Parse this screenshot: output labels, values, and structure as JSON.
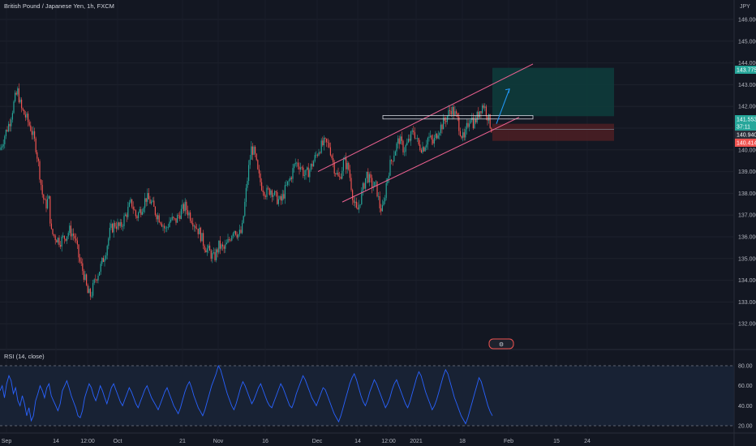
{
  "title": "British Pound / Japanese Yen, 1h, FXCM",
  "currency": "JPY",
  "rsi_title": "RSI (14, close)",
  "badge": "⚙",
  "colors": {
    "background": "#131722",
    "up": "#26a69a",
    "down": "#ef5350",
    "rsi_line": "#2962ff",
    "channel": "#f06292",
    "tp_zone": "#0e3b3b",
    "sl_zone": "#4a1e24"
  },
  "price_tags": [
    {
      "text": "143.775",
      "color": "#26a69a"
    },
    {
      "text": "141.553",
      "color": "#26a69a"
    },
    {
      "text": "37:11",
      "color": "#26a69a"
    },
    {
      "text": "140.940",
      "color": "#2a2e39"
    },
    {
      "text": "140.414",
      "color": "#ef5350"
    }
  ],
  "chart_data": [
    {
      "type": "candlestick",
      "title": "British Pound / Japanese Yen, 1h, FXCM",
      "ylim": [
        131.5,
        146.3
      ],
      "y_ticks": [
        "146.000",
        "145.000",
        "144.000",
        "143.000",
        "142.000",
        "141.000",
        "140.000",
        "139.000",
        "138.000",
        "137.000",
        "136.000",
        "135.000",
        "134.000",
        "133.000",
        "132.000"
      ],
      "x_ticks": [
        "Sep",
        "14",
        "12:00",
        "Oct",
        "21",
        "Nov",
        "16",
        "Dec",
        "14",
        "12:00",
        "2021",
        "18",
        "Feb",
        "15",
        "24"
      ],
      "path": [
        [
          0,
          140.0
        ],
        [
          6,
          140.7
        ],
        [
          12,
          141.3
        ],
        [
          18,
          142.3
        ],
        [
          22,
          142.7
        ],
        [
          26,
          141.9
        ],
        [
          32,
          141.5
        ],
        [
          38,
          141.0
        ],
        [
          44,
          140.2
        ],
        [
          48,
          139.2
        ],
        [
          52,
          138.0
        ],
        [
          56,
          137.4
        ],
        [
          60,
          137.8
        ],
        [
          63,
          136.2
        ],
        [
          68,
          136.0
        ],
        [
          74,
          135.8
        ],
        [
          80,
          136.0
        ],
        [
          86,
          136.3
        ],
        [
          92,
          136.0
        ],
        [
          98,
          134.9
        ],
        [
          104,
          134.2
        ],
        [
          108,
          133.4
        ],
        [
          112,
          133.3
        ],
        [
          118,
          134.1
        ],
        [
          124,
          134.6
        ],
        [
          130,
          135.3
        ],
        [
          136,
          136.3
        ],
        [
          142,
          136.6
        ],
        [
          148,
          136.4
        ],
        [
          155,
          137.0
        ],
        [
          162,
          137.6
        ],
        [
          168,
          136.9
        ],
        [
          174,
          137.3
        ],
        [
          180,
          137.8
        ],
        [
          186,
          137.6
        ],
        [
          192,
          137.1
        ],
        [
          198,
          136.8
        ],
        [
          204,
          136.3
        ],
        [
          210,
          136.8
        ],
        [
          216,
          136.7
        ],
        [
          222,
          137.1
        ],
        [
          228,
          137.4
        ],
        [
          234,
          137.0
        ],
        [
          240,
          136.6
        ],
        [
          246,
          136.2
        ],
        [
          252,
          135.6
        ],
        [
          258,
          135.3
        ],
        [
          264,
          135.0
        ],
        [
          270,
          135.6
        ],
        [
          276,
          135.4
        ],
        [
          282,
          135.8
        ],
        [
          288,
          136.4
        ],
        [
          294,
          136.1
        ],
        [
          298,
          136.2
        ],
        [
          302,
          137.6
        ],
        [
          306,
          139.0
        ],
        [
          310,
          140.1
        ],
        [
          314,
          139.8
        ],
        [
          318,
          138.9
        ],
        [
          322,
          138.4
        ],
        [
          328,
          138.0
        ],
        [
          334,
          138.2
        ],
        [
          340,
          137.8
        ],
        [
          346,
          137.6
        ],
        [
          352,
          138.2
        ],
        [
          358,
          138.7
        ],
        [
          364,
          139.4
        ],
        [
          370,
          139.3
        ],
        [
          376,
          138.8
        ],
        [
          382,
          139.1
        ],
        [
          388,
          139.6
        ],
        [
          394,
          140.1
        ],
        [
          400,
          140.3
        ],
        [
          406,
          140.2
        ],
        [
          412,
          139.2
        ],
        [
          418,
          138.6
        ],
        [
          424,
          139.5
        ],
        [
          430,
          139.1
        ],
        [
          436,
          137.6
        ],
        [
          440,
          137.1
        ],
        [
          446,
          138.0
        ],
        [
          452,
          138.9
        ],
        [
          458,
          138.4
        ],
        [
          464,
          138.3
        ],
        [
          468,
          137.4
        ],
        [
          472,
          137.2
        ],
        [
          476,
          138.4
        ],
        [
          480,
          139.2
        ],
        [
          486,
          139.9
        ],
        [
          492,
          140.5
        ],
        [
          498,
          140.0
        ],
        [
          504,
          140.4
        ],
        [
          510,
          140.9
        ],
        [
          516,
          140.2
        ],
        [
          522,
          140.1
        ],
        [
          528,
          140.6
        ],
        [
          534,
          140.3
        ],
        [
          540,
          140.9
        ],
        [
          546,
          141.2
        ],
        [
          552,
          141.6
        ],
        [
          556,
          141.9
        ],
        [
          560,
          141.7
        ],
        [
          564,
          141.4
        ],
        [
          568,
          140.8
        ],
        [
          572,
          140.4
        ],
        [
          576,
          141.1
        ],
        [
          580,
          141.6
        ],
        [
          584,
          141.2
        ],
        [
          588,
          141.5
        ],
        [
          592,
          141.9
        ],
        [
          596,
          142.1
        ],
        [
          600,
          141.7
        ],
        [
          604,
          141.2
        ],
        [
          607,
          140.9
        ]
      ],
      "drawings": {
        "channel_upper": [
          [
            392,
            139.0
          ],
          [
            657,
            143.95
          ]
        ],
        "channel_lower": [
          [
            422,
            137.6
          ],
          [
            640,
            141.5
          ]
        ],
        "resistance_zone": {
          "x": [
            472,
            657
          ],
          "y": [
            141.42,
            141.58
          ]
        },
        "take_profit_zone": {
          "x": [
            607,
            757
          ],
          "y": [
            141.55,
            143.775
          ]
        },
        "stop_loss_zone": {
          "x": [
            607,
            757
          ],
          "y": [
            140.414,
            141.2
          ]
        },
        "arrow": [
          [
            612,
            141.2
          ],
          [
            628,
            142.8
          ]
        ]
      }
    },
    {
      "type": "line",
      "title": "RSI (14, close)",
      "ylim": [
        15,
        90
      ],
      "y_ticks": [
        "80.00",
        "60.00",
        "40.00",
        "20.00"
      ],
      "bands": [
        20,
        80
      ],
      "values": [
        55,
        60,
        48,
        62,
        70,
        65,
        52,
        58,
        45,
        40,
        50,
        42,
        30,
        38,
        25,
        30,
        45,
        52,
        60,
        55,
        48,
        58,
        62,
        50,
        45,
        40,
        35,
        42,
        55,
        60,
        65,
        58,
        50,
        44,
        38,
        30,
        28,
        35,
        48,
        55,
        62,
        58,
        50,
        45,
        52,
        60,
        55,
        48,
        42,
        50,
        58,
        62,
        56,
        50,
        44,
        40,
        46,
        52,
        58,
        54,
        48,
        42,
        38,
        44,
        50,
        56,
        60,
        54,
        48,
        44,
        40,
        36,
        42,
        48,
        54,
        58,
        52,
        46,
        40,
        36,
        32,
        38,
        46,
        54,
        60,
        64,
        58,
        50,
        44,
        38,
        34,
        30,
        36,
        44,
        52,
        60,
        66,
        72,
        80,
        76,
        68,
        60,
        52,
        46,
        40,
        36,
        42,
        50,
        58,
        64,
        60,
        54,
        48,
        42,
        46,
        52,
        58,
        62,
        56,
        50,
        44,
        40,
        38,
        44,
        50,
        56,
        62,
        58,
        52,
        46,
        40,
        38,
        44,
        52,
        58,
        64,
        70,
        66,
        60,
        54,
        48,
        44,
        40,
        46,
        52,
        58,
        56,
        50,
        44,
        38,
        32,
        28,
        24,
        30,
        38,
        46,
        54,
        62,
        68,
        72,
        66,
        58,
        50,
        44,
        40,
        46,
        54,
        60,
        66,
        62,
        56,
        50,
        44,
        38,
        42,
        48,
        56,
        62,
        66,
        60,
        54,
        48,
        42,
        38,
        44,
        52,
        60,
        68,
        74,
        70,
        62,
        54,
        48,
        42,
        36,
        40,
        46,
        54,
        62,
        70,
        76,
        72,
        64,
        56,
        48,
        42,
        36,
        30,
        26,
        22,
        28,
        36,
        44,
        52,
        60,
        68,
        64,
        56,
        48,
        40,
        34,
        30
      ]
    }
  ]
}
